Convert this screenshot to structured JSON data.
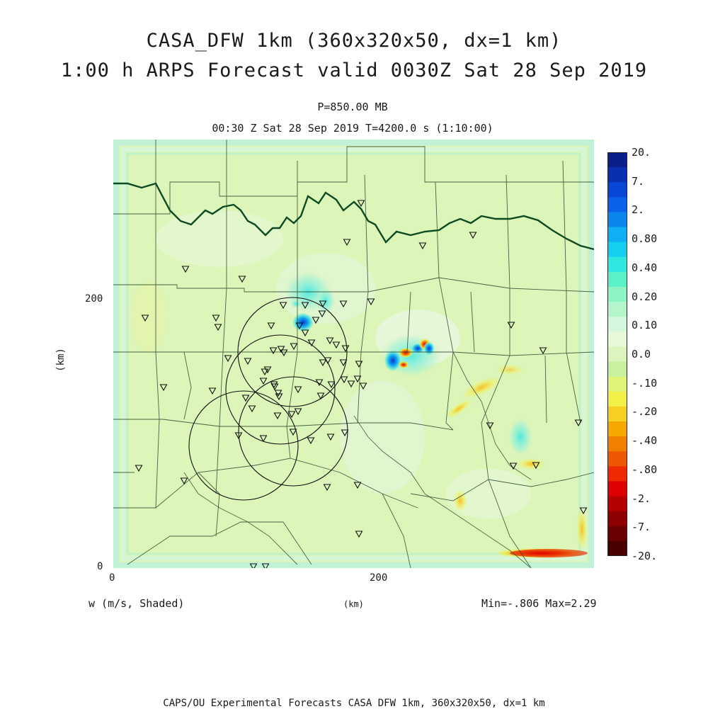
{
  "title": {
    "line1": "CASA_DFW 1km (360x320x50, dx=1 km)",
    "line2": "1:00 h ARPS Forecast valid 0030Z Sat 28 Sep 2019"
  },
  "subtitle": {
    "level": "P=850.00 MB",
    "time": "00:30 Z Sat 28 Sep 2019   T=4200.0 s (1:10:00)"
  },
  "axes": {
    "y_label": "(km)",
    "x_label": "(km)",
    "x_ticks": [
      "0",
      "200"
    ],
    "y_ticks": [
      "0",
      "200"
    ]
  },
  "field_label": "w (m/s, Shaded)",
  "stats": "Min=-.806  Max=2.29",
  "footer": "CAPS/OU Experimental Forecasts  CASA DFW 1km, 360x320x50, dx=1 km",
  "colorbar": {
    "labels": [
      "20.",
      "7.",
      "2.",
      "0.80",
      "0.40",
      "0.20",
      "0.10",
      "0.0",
      "-.10",
      "-.20",
      "-.40",
      "-.80",
      "-2.",
      "-7.",
      "-20."
    ],
    "colors": [
      "#0b1f8c",
      "#0a2fb0",
      "#0846d6",
      "#0a62ea",
      "#0a86ec",
      "#10aef2",
      "#14cfee",
      "#2ee8e0",
      "#5af0c8",
      "#8ef3c2",
      "#b6f4cc",
      "#d4f6dc",
      "#e6f8d8",
      "#dcf5bc",
      "#c8f0a0",
      "#e2f478",
      "#f4f04a",
      "#f6d020",
      "#f6a800",
      "#f28000",
      "#ee5800",
      "#f02a00",
      "#dc0000",
      "#b40000",
      "#8c0000",
      "#6a0000",
      "#4a0000"
    ]
  },
  "colors": {
    "background_field": "#dcf5b8",
    "state_border": "#0d4a22",
    "county_lines": "#2e4a30"
  }
}
